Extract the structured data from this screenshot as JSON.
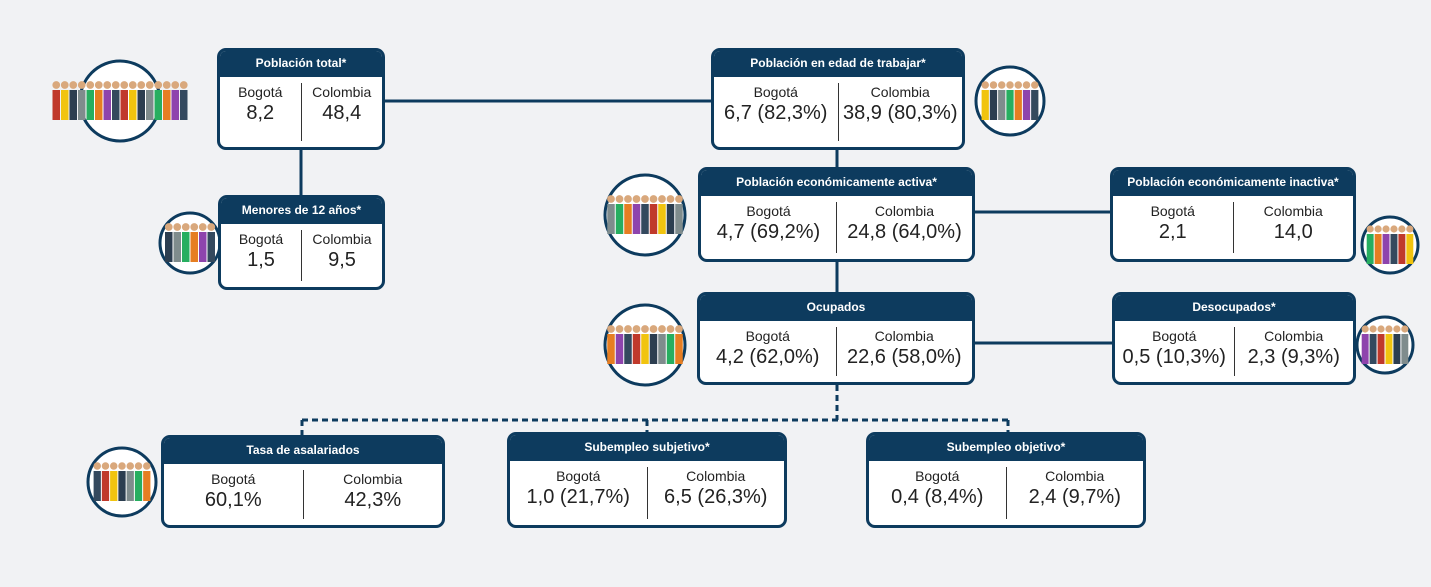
{
  "nodes": [
    {
      "title": "Población total*",
      "columns": [
        "Bogotá",
        "Colombia"
      ],
      "values": [
        "8,2",
        "48,4"
      ]
    },
    {
      "title": "Población en edad de trabajar*",
      "columns": [
        "Bogotá",
        "Colombia"
      ],
      "values": [
        "6,7 (82,3%)",
        "38,9 (80,3%)"
      ]
    },
    {
      "title": "Menores de 12 años*",
      "columns": [
        "Bogotá",
        "Colombia"
      ],
      "values": [
        "1,5",
        "9,5"
      ]
    },
    {
      "title": "Población económicamente activa*",
      "columns": [
        "Bogotá",
        "Colombia"
      ],
      "values": [
        "4,7 (69,2%)",
        "24,8 (64,0%)"
      ]
    },
    {
      "title": "Población económicamente inactiva*",
      "columns": [
        "Bogotá",
        "Colombia"
      ],
      "values": [
        "2,1",
        "14,0"
      ]
    },
    {
      "title": "Ocupados",
      "columns": [
        "Bogotá",
        "Colombia"
      ],
      "values": [
        "4,2 (62,0%)",
        "22,6 (58,0%)"
      ]
    },
    {
      "title": "Desocupados*",
      "columns": [
        "Bogotá",
        "Colombia"
      ],
      "values": [
        "0,5 (10,3%)",
        "2,3 (9,3%)"
      ]
    },
    {
      "title": "Tasa de asalariados",
      "columns": [
        "Bogotá",
        "Colombia"
      ],
      "values": [
        "60,1%",
        "42,3%"
      ]
    },
    {
      "title": "Subempleo subjetivo*",
      "columns": [
        "Bogotá",
        "Colombia"
      ],
      "values": [
        "1,0 (21,7%)",
        "6,5 (26,3%)"
      ]
    },
    {
      "title": "Subempleo objetivo*",
      "columns": [
        "Bogotá",
        "Colombia"
      ],
      "values": [
        "0,4 (8,4%)",
        "2,4 (9,7%)"
      ]
    }
  ]
}
